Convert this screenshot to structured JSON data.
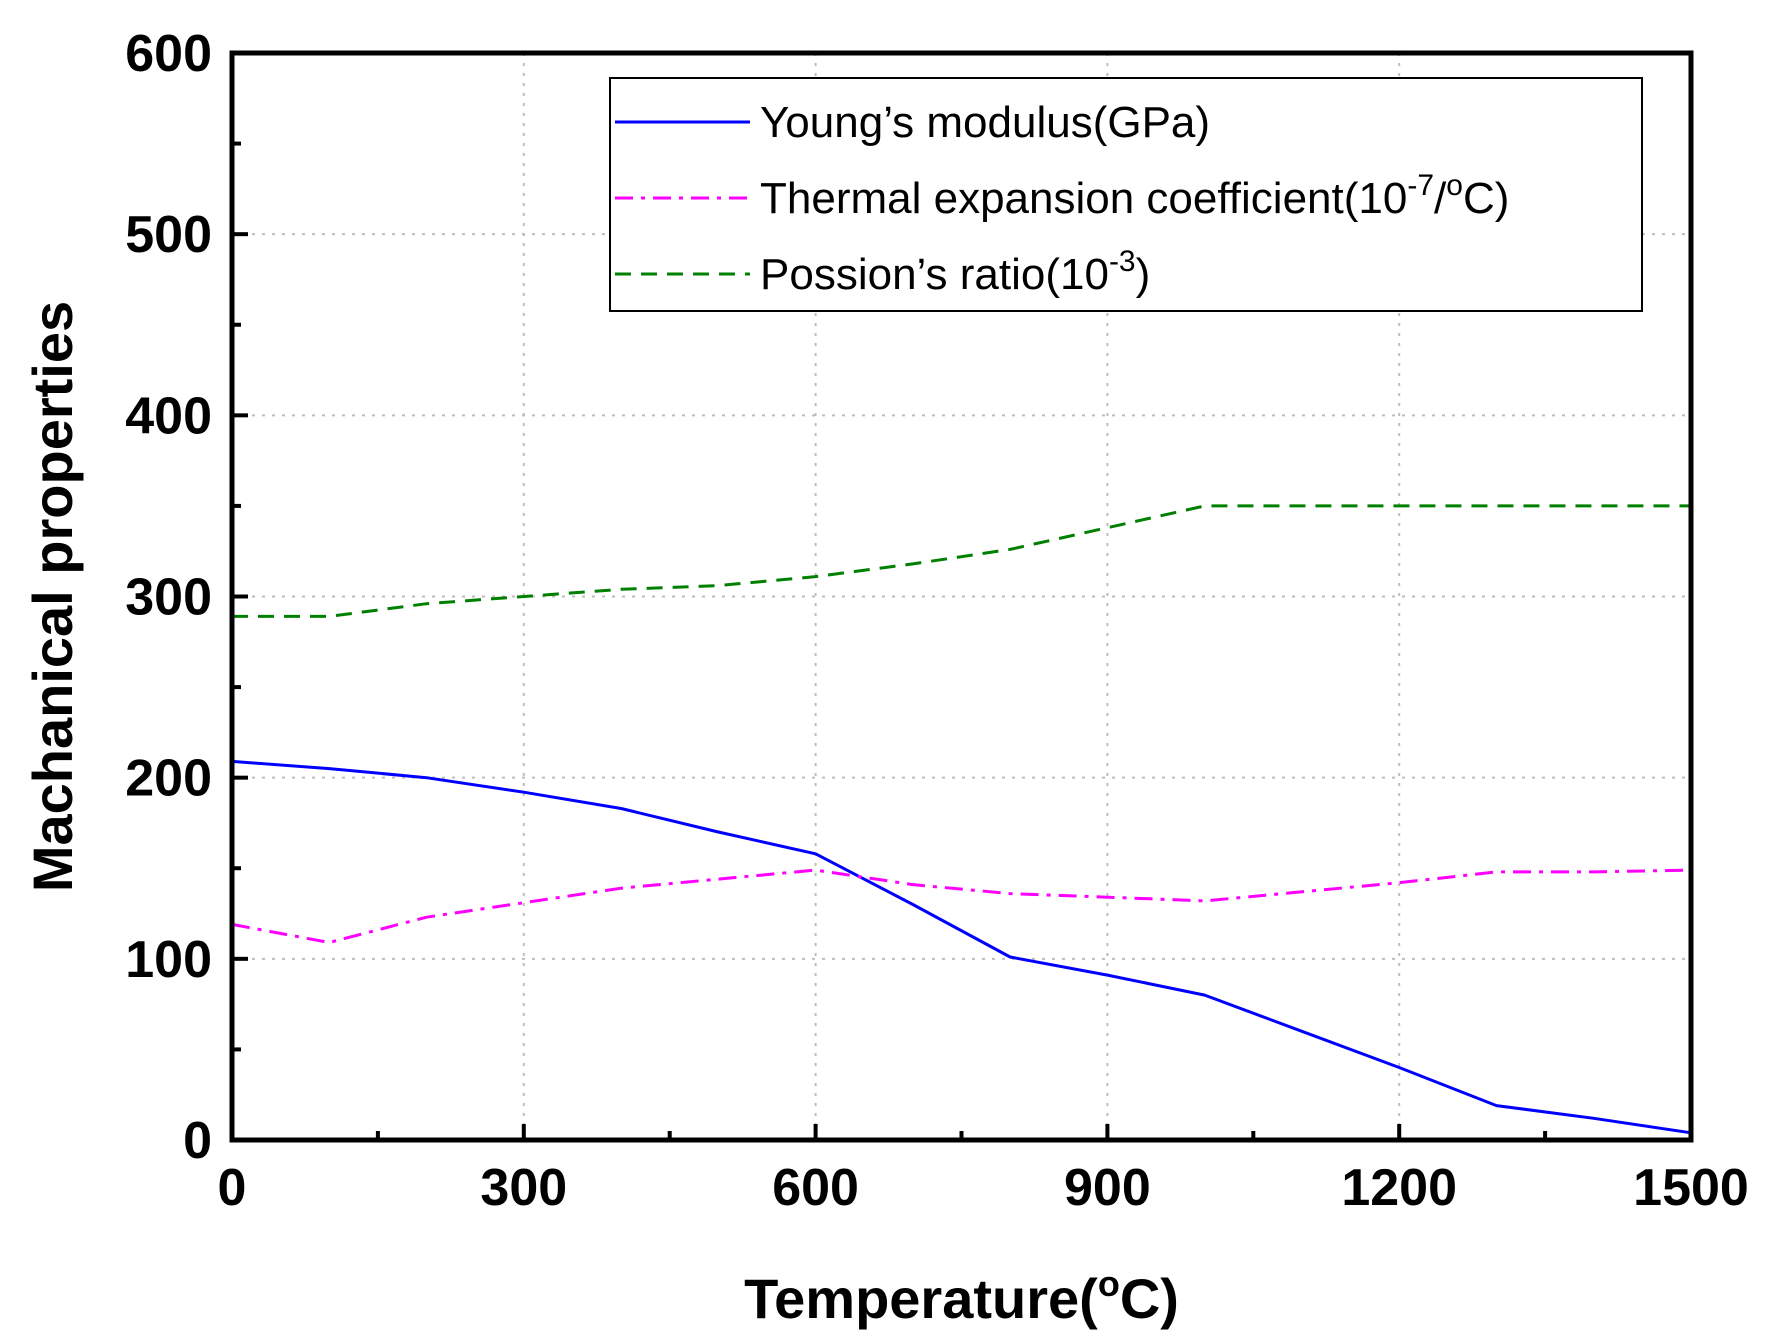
{
  "chart_data": {
    "type": "line",
    "xlabel": "Temperature(",
    "xlabel_unit_sup": "o",
    "xlabel_unit_tail": "C)",
    "ylabel": "Machanical properties",
    "xlim": [
      0,
      1500
    ],
    "ylim": [
      0,
      600
    ],
    "xticks": [
      0,
      300,
      600,
      900,
      1200,
      1500
    ],
    "xtick_labels": [
      "0",
      "300",
      "600",
      "900",
      "1200",
      "1500"
    ],
    "yticks": [
      0,
      100,
      200,
      300,
      400,
      500,
      600
    ],
    "ytick_labels": [
      "0",
      "100",
      "200",
      "300",
      "400",
      "500",
      "600"
    ],
    "grid": true,
    "legend_position": "top-right",
    "series": [
      {
        "name": "Young’s modulus(GPa)",
        "name_parts": [
          "Young’s modulus(GPa)"
        ],
        "color": "#0000ff",
        "dash": "solid",
        "x": [
          0,
          100,
          200,
          300,
          400,
          500,
          600,
          700,
          800,
          900,
          1000,
          1100,
          1200,
          1300,
          1400,
          1500
        ],
        "y": [
          209,
          205,
          200,
          192,
          183,
          170,
          158,
          130,
          101,
          91,
          80,
          60,
          40,
          19,
          12,
          4
        ]
      },
      {
        "name": "Thermal expansion coefficient(10-7/oC)",
        "name_parts": [
          "Thermal expansion coefficient(10",
          "-7",
          "/",
          "o",
          "C)"
        ],
        "color": "#ff00ff",
        "dash": "dashdot",
        "x": [
          0,
          100,
          200,
          300,
          400,
          500,
          600,
          700,
          800,
          900,
          1000,
          1100,
          1200,
          1300,
          1400,
          1500
        ],
        "y": [
          119,
          109,
          123,
          131,
          139,
          144,
          149,
          141,
          136,
          134,
          132,
          137,
          142,
          148,
          148,
          149
        ]
      },
      {
        "name": "Possion’s ratio(10-3)",
        "name_parts": [
          "Possion’s ratio(10",
          "-3",
          ")"
        ],
        "color": "#008000",
        "dash": "dashed",
        "x": [
          0,
          100,
          200,
          300,
          400,
          500,
          600,
          700,
          800,
          900,
          1000,
          1100,
          1200,
          1300,
          1400,
          1500
        ],
        "y": [
          289,
          289,
          296,
          300,
          304,
          306,
          311,
          318,
          326,
          338,
          350,
          350,
          350,
          350,
          350,
          350
        ]
      }
    ]
  }
}
